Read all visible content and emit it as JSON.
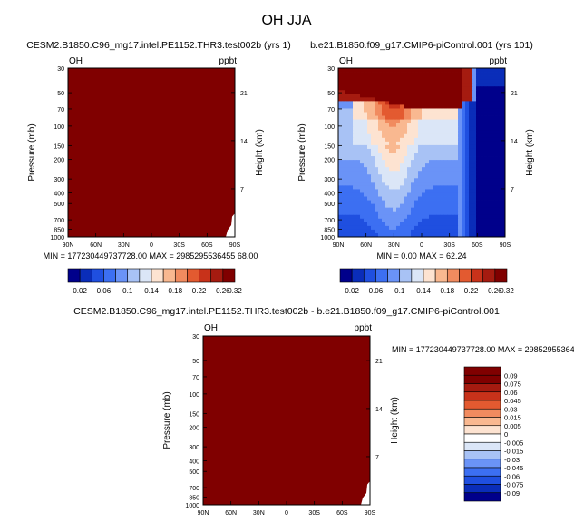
{
  "chart_data": {
    "type": "heatmap",
    "title": "OH JJA",
    "colors": {
      "abs_scale": [
        "#00008b",
        "#0a2db9",
        "#1f4fe0",
        "#3c6ff2",
        "#6a93f7",
        "#a8c2f5",
        "#dbe6f7",
        "#fde3d1",
        "#f9b890",
        "#f18b5f",
        "#e35a30",
        "#c8321a",
        "#a51b10",
        "#800000"
      ],
      "diff_scale": [
        "#00008b",
        "#0a2db9",
        "#1f4fe0",
        "#3c6ff2",
        "#6a93f7",
        "#a8c2f5",
        "#dbe6f7",
        "#ffffff",
        "#fde3d1",
        "#f9b890",
        "#f18b5f",
        "#e35a30",
        "#c8321a",
        "#a51b10",
        "#800000"
      ],
      "saturated": "#800000"
    },
    "panels": [
      {
        "id": "case1",
        "title": "CESM2.B1850.C96_mg17.intel.PE1152.THR3.test002b (yrs 1)",
        "variable": "OH",
        "units": "ppbt",
        "xlabel": "",
        "ylabel": "Pressure (mb)",
        "y2label": "Height (km)",
        "xticks": [
          "90N",
          "60N",
          "30N",
          "0",
          "30S",
          "60S",
          "90S"
        ],
        "yticks": [
          "30",
          "50",
          "70",
          "100",
          "150",
          "200",
          "300",
          "400",
          "500",
          "700",
          "850",
          "1000"
        ],
        "y2ticks": [
          "21",
          "14",
          "7"
        ],
        "stats": "MIN = 177230449737728.00   MAX = 2985295536455 68.00",
        "min": 177230449737728.0,
        "max": 298529553645568.0,
        "field": "saturated"
      },
      {
        "id": "case2",
        "title": "b.e21.B1850.f09_g17.CMIP6-piControl.001 (yrs 101)",
        "variable": "OH",
        "units": "ppbt",
        "xlabel": "",
        "ylabel": "Pressure (mb)",
        "y2label": "Height (km)",
        "xticks": [
          "90N",
          "60N",
          "30N",
          "0",
          "30S",
          "60S",
          "90S"
        ],
        "yticks": [
          "30",
          "50",
          "70",
          "100",
          "150",
          "200",
          "300",
          "400",
          "500",
          "700",
          "850",
          "1000"
        ],
        "y2ticks": [
          "21",
          "14",
          "7"
        ],
        "stats": "MIN =   0.00   MAX =   62.24",
        "min": 0.0,
        "max": 62.24,
        "field": "contour"
      },
      {
        "id": "diff",
        "title": "CESM2.B1850.C96_mg17.intel.PE1152.THR3.test002b - b.e21.B1850.f09_g17.CMIP6-piControl.001",
        "variable": "OH",
        "units": "ppbt",
        "xlabel": "",
        "ylabel": "Pressure (mb)",
        "y2label": "Height (km)",
        "xticks": [
          "90N",
          "60N",
          "30N",
          "0",
          "30S",
          "60S",
          "90S"
        ],
        "yticks": [
          "30",
          "50",
          "70",
          "100",
          "150",
          "200",
          "300",
          "400",
          "500",
          "700",
          "850",
          "1000"
        ],
        "y2ticks": [
          "21",
          "14",
          "7"
        ],
        "stats": "MIN = 177230449737728.00   MAX = 298529553645",
        "min": 177230449737728.0,
        "field": "saturated"
      }
    ],
    "abs_colorbar": {
      "labels": [
        "0.02",
        "0.06",
        "0.1",
        "0.14",
        "0.18",
        "0.22",
        "0.26",
        "0.32"
      ],
      "levels": [
        0.02,
        0.04,
        0.06,
        0.08,
        0.1,
        0.12,
        0.14,
        0.16,
        0.18,
        0.2,
        0.22,
        0.24,
        0.26,
        0.32
      ]
    },
    "diff_colorbar": {
      "labels": [
        "0.09",
        "0.075",
        "0.06",
        "0.045",
        "0.03",
        "0.015",
        "0.005",
        "0",
        "-0.005",
        "-0.015",
        "-0.03",
        "-0.045",
        "-0.06",
        "-0.075",
        "-0.09"
      ]
    }
  }
}
